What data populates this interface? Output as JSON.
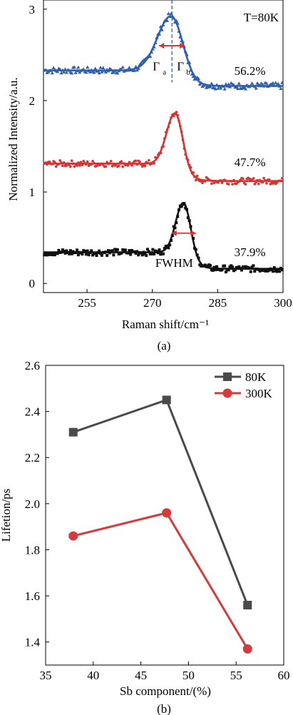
{
  "chart_data": [
    {
      "type": "line",
      "panel_label": "(a)",
      "xlabel": "Raman shift/cm⁻¹",
      "ylabel": "Normalized Intensity/a.u.",
      "xlim": [
        245,
        300
      ],
      "ylim": [
        -0.1,
        3.1
      ],
      "xticks": [
        255,
        270,
        285,
        300
      ],
      "xtick_labels": [
        "255",
        "270",
        "285",
        "300"
      ],
      "yticks": [
        0,
        1,
        2,
        3
      ],
      "ytick_labels": [
        "0",
        "1",
        "2",
        "3"
      ],
      "annotations": {
        "temperature": "T=80K",
        "gamma_a": "Γ",
        "gamma_a_sub": "a",
        "gamma_b": "Γ",
        "gamma_b_sub": "b",
        "fwhm": "FWHM"
      },
      "dashed_line_x": 274.5,
      "series": [
        {
          "name": "56.2%",
          "color": "#2f5fb3",
          "marker": "triangle",
          "baseline_left": 2.33,
          "baseline_right": 2.16,
          "peak_x": 274.5,
          "peak_y": 2.92,
          "width_left": 3.2,
          "width_right": 2.6,
          "step_x": 276,
          "step_width": 1.8,
          "label_x": 296,
          "label_y": 2.28
        },
        {
          "name": "47.7%",
          "color": "#d93030",
          "marker": "circle",
          "baseline_left": 1.31,
          "baseline_right": 1.12,
          "peak_x": 275.3,
          "peak_y": 1.86,
          "width_left": 2.0,
          "width_right": 1.7,
          "step_x": 277,
          "step_width": 1.6,
          "label_x": 296,
          "label_y": 1.28
        },
        {
          "name": "37.9%",
          "color": "#111111",
          "marker": "square",
          "baseline_left": 0.34,
          "baseline_right": 0.16,
          "peak_x": 277.2,
          "peak_y": 0.88,
          "width_left": 1.8,
          "width_right": 1.6,
          "step_x": 279,
          "step_width": 1.4,
          "label_x": 296,
          "label_y": 0.3
        }
      ]
    },
    {
      "type": "line",
      "panel_label": "(b)",
      "xlabel": "Sb component/(%)",
      "ylabel": "Lifetion/ps",
      "xlim": [
        35,
        60
      ],
      "ylim": [
        1.3,
        2.6
      ],
      "xticks": [
        35,
        40,
        45,
        50,
        55,
        60
      ],
      "xtick_labels": [
        "35",
        "40",
        "45",
        "50",
        "55",
        "60"
      ],
      "yticks": [
        1.4,
        1.6,
        1.8,
        2.0,
        2.2,
        2.4,
        2.6
      ],
      "ytick_labels": [
        "1.4",
        "1.6",
        "1.8",
        "2.0",
        "2.2",
        "2.4",
        "2.6"
      ],
      "legend_position": "top-right",
      "series": [
        {
          "name": "80K",
          "color": "#4a4a4a",
          "marker": "square",
          "x": [
            37.9,
            47.7,
            56.2
          ],
          "y": [
            2.31,
            2.45,
            1.56
          ]
        },
        {
          "name": "300K",
          "color": "#d63a3a",
          "marker": "circle",
          "x": [
            37.9,
            47.7,
            56.2
          ],
          "y": [
            1.86,
            1.96,
            1.37
          ]
        }
      ]
    }
  ]
}
